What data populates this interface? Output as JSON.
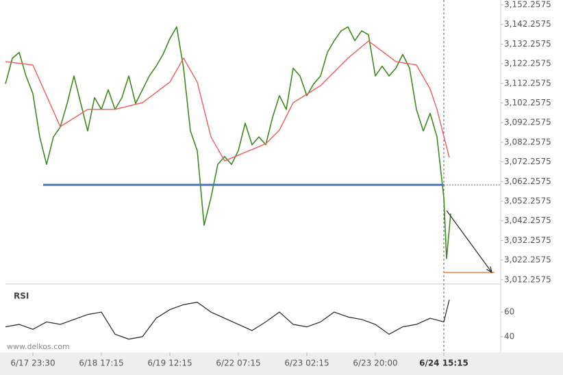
{
  "chart_data": {
    "type": "line",
    "watermark": "www.delkos.com",
    "xlim": [
      -40,
      683
    ],
    "xticks": [
      {
        "value": 0,
        "label": "6/17 23:30"
      },
      {
        "value": 100,
        "label": "6/18 17:15"
      },
      {
        "value": 200,
        "label": "6/19 12:15"
      },
      {
        "value": 300,
        "label": "6/22 07:15"
      },
      {
        "value": 400,
        "label": "6/23 02:15"
      },
      {
        "value": 500,
        "label": "6/23 20:00"
      },
      {
        "value": 600,
        "label": "6/24 15:15"
      }
    ],
    "current_x": 600,
    "ylim": [
      3010.1,
      3154.7
    ],
    "yticks": [
      {
        "value": 3012.2575,
        "label": "3,012.2575"
      },
      {
        "value": 3022.2575,
        "label": "3,022.2575"
      },
      {
        "value": 3032.2575,
        "label": "3,032.2575"
      },
      {
        "value": 3042.2575,
        "label": "3,042.2575"
      },
      {
        "value": 3052.2575,
        "label": "3,052.2575"
      },
      {
        "value": 3062.2575,
        "label": "3,062.2575"
      },
      {
        "value": 3072.2575,
        "label": "3,072.2575"
      },
      {
        "value": 3082.2575,
        "label": "3,082.2575"
      },
      {
        "value": 3092.2575,
        "label": "3,092.2575"
      },
      {
        "value": 3102.2575,
        "label": "3,102.2575"
      },
      {
        "value": 3112.2575,
        "label": "3,112.2575"
      },
      {
        "value": 3122.2575,
        "label": "3,122.2575"
      },
      {
        "value": 3132.2575,
        "label": "3,132.2575"
      },
      {
        "value": 3142.2575,
        "label": "3,142.2575"
      },
      {
        "value": 3152.2575,
        "label": "3,152.2575"
      }
    ],
    "grid": false,
    "support_level": {
      "value": 3060.6,
      "x": [
        15,
        600
      ],
      "color": "#4a74b8"
    },
    "target_level": {
      "value": 3016.0,
      "x": [
        600,
        674
      ],
      "color": "#f08040"
    },
    "series": [
      {
        "color": "#3c8a1e",
        "x": [
          -40,
          -30,
          -20,
          -10,
          0,
          10,
          20,
          30,
          40,
          50,
          60,
          70,
          80,
          90,
          100,
          110,
          120,
          130,
          140,
          150,
          160,
          170,
          180,
          190,
          200,
          210,
          220,
          230,
          240,
          250,
          260,
          270,
          280,
          290,
          300,
          310,
          320,
          330,
          340,
          350,
          360,
          370,
          380,
          390,
          400,
          410,
          420,
          430,
          440,
          450,
          460,
          470,
          480,
          490,
          500,
          510,
          520,
          530,
          540,
          550,
          560,
          570,
          580,
          590,
          600,
          604,
          610
        ],
        "values": [
          3112,
          3125,
          3128,
          3116,
          3107,
          3085,
          3071,
          3085,
          3090,
          3102,
          3116,
          3102,
          3088,
          3105,
          3099,
          3109,
          3099,
          3105,
          3116,
          3102,
          3109,
          3116,
          3121,
          3127,
          3135,
          3141,
          3120,
          3088,
          3078,
          3040,
          3054,
          3071,
          3075,
          3071,
          3078,
          3092,
          3081,
          3085,
          3081,
          3095,
          3106,
          3099,
          3120,
          3116,
          3106,
          3112,
          3116,
          3128,
          3134,
          3139,
          3141,
          3134,
          3139,
          3137,
          3116,
          3121,
          3116,
          3120,
          3127,
          3120,
          3099,
          3088,
          3097,
          3085,
          3054,
          3023,
          3046
        ]
      },
      {
        "color": "#f05a5a",
        "x": [
          -40,
          0,
          40,
          80,
          120,
          160,
          200,
          220,
          240,
          260,
          280,
          340,
          360,
          380,
          420,
          460,
          490,
          510,
          530,
          560,
          580,
          590,
          608
        ],
        "values": [
          3123.3,
          3121.6,
          3090.2,
          3099,
          3099,
          3102.4,
          3112.9,
          3125.1,
          3112.9,
          3085,
          3072.8,
          3081.5,
          3088.5,
          3102.4,
          3111.1,
          3125.1,
          3133.8,
          3128.6,
          3123.3,
          3121.6,
          3109.4,
          3099,
          3074.5
        ]
      }
    ],
    "arrow": {
      "x": [
        604,
        670
      ],
      "values": [
        3047.5,
        3016.0
      ]
    },
    "rsi": {
      "label": "RSI",
      "ylim": [
        28.9,
        82.8
      ],
      "yticks": [
        40,
        60
      ],
      "color": "#222222",
      "x": [
        -40,
        -20,
        0,
        20,
        40,
        60,
        80,
        100,
        120,
        140,
        160,
        180,
        200,
        220,
        240,
        260,
        280,
        300,
        320,
        340,
        360,
        380,
        400,
        420,
        440,
        460,
        480,
        500,
        520,
        540,
        560,
        580,
        600,
        608
      ],
      "values": [
        48,
        50,
        46,
        52,
        50,
        54,
        58,
        60,
        42,
        38,
        40,
        55,
        62,
        66,
        68,
        60,
        55,
        50,
        45,
        52,
        60,
        50,
        48,
        52,
        60,
        56,
        54,
        50,
        42,
        48,
        50,
        55,
        52,
        70
      ]
    }
  }
}
